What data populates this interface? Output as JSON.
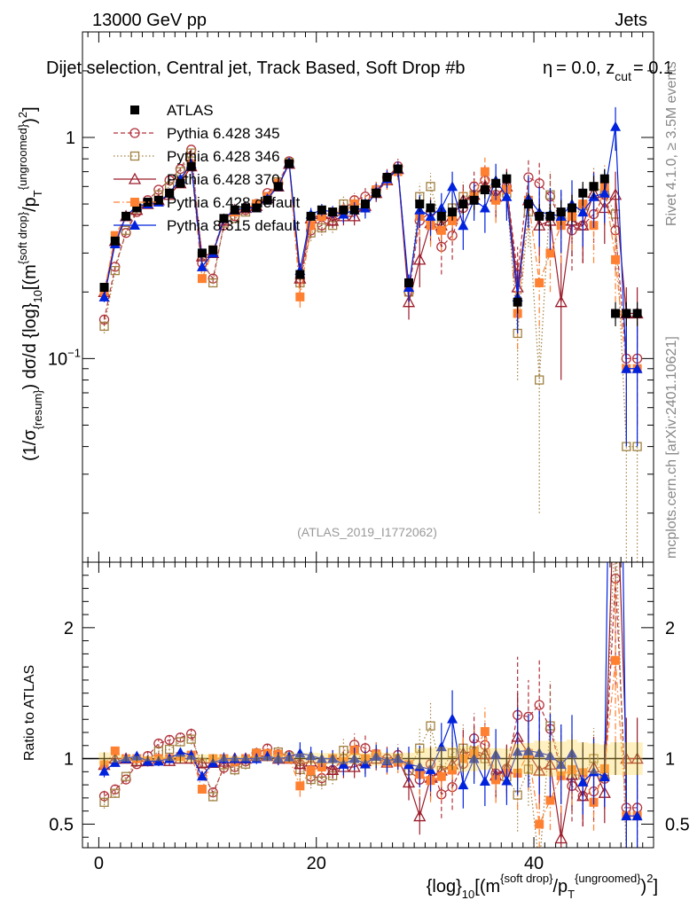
{
  "header": {
    "energy_label": "13000 GeV pp",
    "category_label": "Jets"
  },
  "plot_title": "Dijet selection, Central jet, Track Based, Soft Drop #b",
  "title_suffix": "= 0.0, z",
  "title_suffix_sub": "cut",
  "title_suffix_end": "= 0.1",
  "title_beta_glyph": "η",
  "side_labels": {
    "rivet": "Rivet 4.1.0, ≥ 3.5M events",
    "mcplots": "mcplots.cern.ch [arXiv:2401.10621]"
  },
  "watermark": "(ATLAS_2019_I1772062)",
  "main_ylabel": {
    "part1": "(1/σ",
    "sub1": "{resum}",
    "part2": ") dσ/d {log}",
    "sub2": "10",
    "part3": "[(m",
    "sup1": "{soft drop}",
    "part4": "/p",
    "sub3": "T",
    "sup2": "{ungroomed}",
    "part5": ")",
    "sup3": "2",
    "part6": "]"
  },
  "ratio_ylabel": "Ratio to ATLAS",
  "xlabel": {
    "part1": "{log}",
    "sub1": "10",
    "part2": "[(m",
    "sup1": "{soft drop}",
    "part3": "/p",
    "sub2": "T",
    "sup2": "{ungroomed}",
    "part4": ")",
    "sup3": "2",
    "part5": "]"
  },
  "legend": [
    {
      "label": "ATLAS",
      "color": "#000000"
    },
    {
      "label": "Pythia 6.428 345",
      "color": "#b2323c"
    },
    {
      "label": "Pythia 6.428 346",
      "color": "#a08040"
    },
    {
      "label": "Pythia 6.428 370",
      "color": "#9b1c2a"
    },
    {
      "label": "Pythia 6.428 default",
      "color": "#ff8030"
    },
    {
      "label": "Pythia 8.315 default",
      "color": "#0022dd"
    }
  ],
  "chart_data": {
    "type": "line",
    "x": [
      0.5,
      1.5,
      2.5,
      3.5,
      4.5,
      5.5,
      6.5,
      7.5,
      8.5,
      9.5,
      10.5,
      11.5,
      12.5,
      13.5,
      14.5,
      15.5,
      16.5,
      17.5,
      18.5,
      19.5,
      20.5,
      21.5,
      22.5,
      23.5,
      24.5,
      25.5,
      26.5,
      27.5,
      28.5,
      29.5,
      30.5,
      31.5,
      32.5,
      33.5,
      34.5,
      35.5,
      36.5,
      37.5,
      38.5,
      39.5,
      40.5,
      41.5,
      42.5,
      43.5,
      44.5,
      45.5,
      46.5,
      47.5,
      48.5,
      49.5
    ],
    "xlim": [
      -1.5,
      51
    ],
    "xticks": [
      0,
      20,
      40
    ],
    "xtick_labels": [
      "0",
      "20",
      "40"
    ],
    "main_ylim": [
      0.012,
      3.0
    ],
    "main_yscale": "log",
    "main_yticks": [
      0.1,
      1
    ],
    "main_ytick_labels": [
      "10",
      "1"
    ],
    "main_ytick_exponents": [
      "−1",
      ""
    ],
    "ratio_ylim": [
      0.32,
      2.5
    ],
    "ratio_yticks": [
      0.5,
      1,
      2
    ],
    "ratio_ytick_labels": [
      "0.5",
      "1",
      "2"
    ],
    "series": [
      {
        "name": "ATLAS",
        "marker": "square-filled",
        "values": [
          0.21,
          0.34,
          0.44,
          0.48,
          0.51,
          0.52,
          0.56,
          0.62,
          0.74,
          0.3,
          0.31,
          0.43,
          0.47,
          0.48,
          0.48,
          0.52,
          0.6,
          0.76,
          0.24,
          0.44,
          0.47,
          0.46,
          0.47,
          0.47,
          0.5,
          0.56,
          0.66,
          0.72,
          0.22,
          0.5,
          0.48,
          0.44,
          0.46,
          0.5,
          0.52,
          0.58,
          0.62,
          0.65,
          0.18,
          0.5,
          0.44,
          0.44,
          0.46,
          0.48,
          0.56,
          0.6,
          0.65,
          0.16,
          0.16,
          0.16
        ],
        "errors": [
          0.01,
          0.01,
          0.01,
          0.01,
          0.01,
          0.01,
          0.01,
          0.02,
          0.02,
          0.01,
          0.01,
          0.01,
          0.01,
          0.01,
          0.01,
          0.01,
          0.02,
          0.02,
          0.01,
          0.02,
          0.02,
          0.02,
          0.02,
          0.02,
          0.02,
          0.03,
          0.03,
          0.03,
          0.01,
          0.04,
          0.04,
          0.04,
          0.04,
          0.05,
          0.05,
          0.05,
          0.05,
          0.05,
          0.02,
          0.06,
          0.06,
          0.06,
          0.06,
          0.07,
          0.07,
          0.07,
          0.07,
          0.02,
          0.02,
          0.02
        ]
      },
      {
        "name": "Pythia 6.428 345",
        "marker": "circle-open",
        "values": [
          0.15,
          0.26,
          0.37,
          0.46,
          0.52,
          0.58,
          0.64,
          0.72,
          0.88,
          0.27,
          0.23,
          0.4,
          0.44,
          0.47,
          0.5,
          0.56,
          0.62,
          0.78,
          0.23,
          0.38,
          0.4,
          0.42,
          0.47,
          0.52,
          0.54,
          0.58,
          0.66,
          0.74,
          0.2,
          0.42,
          0.46,
          0.32,
          0.36,
          0.48,
          0.6,
          0.64,
          0.55,
          0.6,
          0.24,
          0.66,
          0.62,
          0.54,
          0.42,
          0.38,
          0.4,
          0.45,
          0.55,
          0.38,
          0.1,
          0.1
        ],
        "errors": [
          0.01,
          0.01,
          0.01,
          0.01,
          0.02,
          0.02,
          0.02,
          0.02,
          0.03,
          0.01,
          0.01,
          0.02,
          0.02,
          0.02,
          0.02,
          0.02,
          0.03,
          0.03,
          0.02,
          0.03,
          0.03,
          0.03,
          0.04,
          0.04,
          0.05,
          0.05,
          0.06,
          0.06,
          0.03,
          0.08,
          0.08,
          0.08,
          0.08,
          0.09,
          0.1,
          0.11,
          0.11,
          0.12,
          0.08,
          0.14,
          0.15,
          0.15,
          0.14,
          0.13,
          0.13,
          0.14,
          0.15,
          0.13,
          0.05,
          0.05
        ]
      },
      {
        "name": "Pythia 6.428 346",
        "marker": "square-open",
        "values": [
          0.14,
          0.25,
          0.38,
          0.47,
          0.5,
          0.55,
          0.6,
          0.7,
          0.85,
          0.29,
          0.22,
          0.41,
          0.43,
          0.46,
          0.5,
          0.54,
          0.63,
          0.77,
          0.22,
          0.37,
          0.39,
          0.4,
          0.5,
          0.5,
          0.48,
          0.57,
          0.64,
          0.72,
          0.2,
          0.54,
          0.6,
          0.4,
          0.48,
          0.54,
          0.55,
          0.58,
          0.53,
          0.56,
          0.13,
          0.46,
          0.08,
          0.55,
          0.44,
          0.42,
          0.49,
          0.6,
          0.56,
          0.45,
          0.04,
          0.04
        ],
        "errors": [
          0.01,
          0.01,
          0.01,
          0.01,
          0.02,
          0.02,
          0.02,
          0.02,
          0.03,
          0.01,
          0.01,
          0.02,
          0.02,
          0.02,
          0.02,
          0.02,
          0.03,
          0.03,
          0.02,
          0.03,
          0.03,
          0.03,
          0.04,
          0.04,
          0.05,
          0.05,
          0.06,
          0.06,
          0.03,
          0.08,
          0.09,
          0.08,
          0.08,
          0.09,
          0.1,
          0.11,
          0.11,
          0.12,
          0.05,
          0.14,
          0.06,
          0.15,
          0.14,
          0.13,
          0.13,
          0.14,
          0.15,
          0.13,
          0.03,
          0.03
        ]
      },
      {
        "name": "Pythia 6.428 370",
        "marker": "triangle-open",
        "values": [
          0.2,
          0.34,
          0.44,
          0.47,
          0.5,
          0.52,
          0.55,
          0.62,
          0.74,
          0.29,
          0.3,
          0.42,
          0.47,
          0.48,
          0.49,
          0.53,
          0.6,
          0.76,
          0.23,
          0.43,
          0.45,
          0.42,
          0.44,
          0.44,
          0.49,
          0.56,
          0.64,
          0.72,
          0.18,
          0.28,
          0.41,
          0.4,
          0.44,
          0.52,
          0.55,
          0.6,
          0.54,
          0.6,
          0.21,
          0.52,
          0.4,
          0.42,
          0.18,
          0.42,
          0.4,
          0.56,
          0.48,
          0.55,
          0.16,
          0.16
        ],
        "errors": [
          0.01,
          0.01,
          0.01,
          0.01,
          0.02,
          0.02,
          0.02,
          0.02,
          0.03,
          0.01,
          0.01,
          0.02,
          0.02,
          0.02,
          0.02,
          0.02,
          0.03,
          0.03,
          0.02,
          0.03,
          0.03,
          0.03,
          0.04,
          0.04,
          0.05,
          0.05,
          0.06,
          0.06,
          0.03,
          0.07,
          0.08,
          0.08,
          0.08,
          0.09,
          0.1,
          0.11,
          0.11,
          0.12,
          0.06,
          0.14,
          0.13,
          0.13,
          0.1,
          0.13,
          0.13,
          0.14,
          0.15,
          0.15,
          0.05,
          0.05
        ]
      },
      {
        "name": "Pythia 6.428 default",
        "marker": "square-filled",
        "values": [
          0.2,
          0.36,
          0.44,
          0.48,
          0.5,
          0.52,
          0.56,
          0.63,
          0.76,
          0.23,
          0.31,
          0.43,
          0.46,
          0.48,
          0.5,
          0.54,
          0.62,
          0.76,
          0.19,
          0.4,
          0.44,
          0.46,
          0.46,
          0.5,
          0.5,
          0.58,
          0.64,
          0.7,
          0.21,
          0.44,
          0.4,
          0.38,
          0.42,
          0.5,
          0.54,
          0.7,
          0.52,
          0.58,
          0.16,
          0.52,
          0.22,
          0.3,
          0.4,
          0.44,
          0.5,
          0.4,
          0.6,
          0.28,
          0.09,
          0.09
        ],
        "errors": [
          0.01,
          0.01,
          0.01,
          0.01,
          0.02,
          0.02,
          0.02,
          0.02,
          0.03,
          0.01,
          0.01,
          0.02,
          0.02,
          0.02,
          0.02,
          0.02,
          0.03,
          0.03,
          0.02,
          0.03,
          0.03,
          0.03,
          0.04,
          0.04,
          0.05,
          0.05,
          0.06,
          0.06,
          0.03,
          0.08,
          0.08,
          0.08,
          0.08,
          0.09,
          0.1,
          0.11,
          0.11,
          0.12,
          0.05,
          0.14,
          0.08,
          0.1,
          0.13,
          0.13,
          0.13,
          0.13,
          0.15,
          0.1,
          0.04,
          0.04
        ]
      },
      {
        "name": "Pythia 8.315 default",
        "marker": "triangle-filled",
        "values": [
          0.19,
          0.33,
          0.44,
          0.49,
          0.5,
          0.51,
          0.56,
          0.65,
          0.76,
          0.26,
          0.3,
          0.43,
          0.47,
          0.48,
          0.48,
          0.53,
          0.6,
          0.77,
          0.25,
          0.45,
          0.47,
          0.46,
          0.45,
          0.47,
          0.48,
          0.57,
          0.65,
          0.72,
          0.21,
          0.47,
          0.44,
          0.48,
          0.6,
          0.4,
          0.52,
          0.48,
          0.64,
          0.54,
          0.19,
          0.53,
          0.46,
          0.45,
          0.44,
          0.5,
          0.46,
          0.54,
          0.56,
          1.12,
          0.09,
          0.09
        ],
        "errors": [
          0.01,
          0.01,
          0.01,
          0.01,
          0.02,
          0.02,
          0.02,
          0.02,
          0.03,
          0.01,
          0.01,
          0.02,
          0.02,
          0.02,
          0.02,
          0.02,
          0.03,
          0.03,
          0.02,
          0.03,
          0.03,
          0.03,
          0.04,
          0.04,
          0.05,
          0.05,
          0.06,
          0.06,
          0.03,
          0.08,
          0.08,
          0.08,
          0.1,
          0.09,
          0.1,
          0.11,
          0.12,
          0.12,
          0.06,
          0.14,
          0.14,
          0.14,
          0.14,
          0.14,
          0.14,
          0.15,
          0.15,
          0.25,
          0.05,
          0.05
        ]
      }
    ]
  }
}
